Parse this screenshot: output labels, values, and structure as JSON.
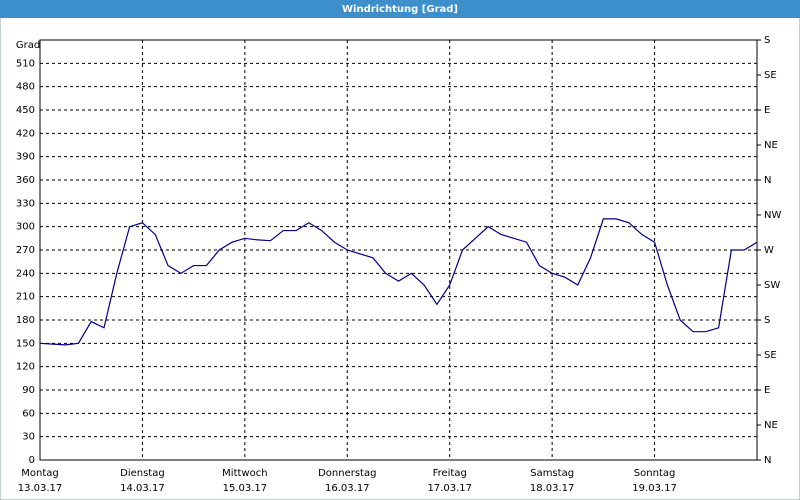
{
  "chart_data": {
    "type": "line",
    "title": "Windrichtung [Grad]",
    "y_label": "Grad",
    "x": [
      0,
      3,
      6,
      9,
      12,
      15,
      18,
      21,
      24,
      27,
      30,
      33,
      36,
      39,
      42,
      45,
      48,
      51,
      54,
      57,
      60,
      63,
      66,
      69,
      72,
      75,
      78,
      81,
      84,
      87,
      90,
      93,
      96,
      99,
      102,
      105,
      108,
      111,
      114,
      117,
      120,
      123,
      126,
      129,
      132,
      135,
      138,
      141,
      144,
      147,
      150,
      153,
      156,
      159,
      162,
      165,
      168
    ],
    "series": [
      {
        "name": "Windrichtung",
        "color": "#00008b",
        "values": [
          150,
          149,
          148,
          150,
          178,
          170,
          240,
          300,
          305,
          290,
          250,
          240,
          250,
          250,
          270,
          280,
          285,
          283,
          282,
          295,
          295,
          305,
          295,
          280,
          270,
          265,
          260,
          240,
          230,
          240,
          225,
          200,
          225,
          270,
          285,
          300,
          290,
          285,
          280,
          250,
          240,
          235,
          225,
          260,
          310,
          310,
          305,
          290,
          280,
          225,
          180,
          165,
          165,
          170,
          270,
          270,
          280
        ]
      }
    ],
    "xlim": [
      0,
      168
    ],
    "xticks": [
      {
        "value": 0,
        "label": "Montag",
        "date": "13.03.17"
      },
      {
        "value": 24,
        "label": "Dienstag",
        "date": "14.03.17"
      },
      {
        "value": 48,
        "label": "Mittwoch",
        "date": "15.03.17"
      },
      {
        "value": 72,
        "label": "Donnerstag",
        "date": "16.03.17"
      },
      {
        "value": 96,
        "label": "Freitag",
        "date": "17.03.17"
      },
      {
        "value": 120,
        "label": "Samstag",
        "date": "18.03.17"
      },
      {
        "value": 144,
        "label": "Sonntag",
        "date": "19.03.17"
      }
    ],
    "ylim": [
      0,
      540
    ],
    "yticks": [
      0,
      30,
      60,
      90,
      120,
      150,
      180,
      210,
      240,
      270,
      300,
      330,
      360,
      390,
      420,
      450,
      480,
      510
    ],
    "y2lim": [
      0,
      540
    ],
    "y2ticks": [
      {
        "value": 0,
        "label": "N"
      },
      {
        "value": 45,
        "label": "NE"
      },
      {
        "value": 90,
        "label": "E"
      },
      {
        "value": 135,
        "label": "SE"
      },
      {
        "value": 180,
        "label": "S"
      },
      {
        "value": 225,
        "label": "SW"
      },
      {
        "value": 270,
        "label": "W"
      },
      {
        "value": 315,
        "label": "NW"
      },
      {
        "value": 360,
        "label": "N"
      },
      {
        "value": 405,
        "label": "NE"
      },
      {
        "value": 450,
        "label": "E"
      },
      {
        "value": 495,
        "label": "SE"
      },
      {
        "value": 540,
        "label": "S"
      }
    ],
    "grid": true
  }
}
